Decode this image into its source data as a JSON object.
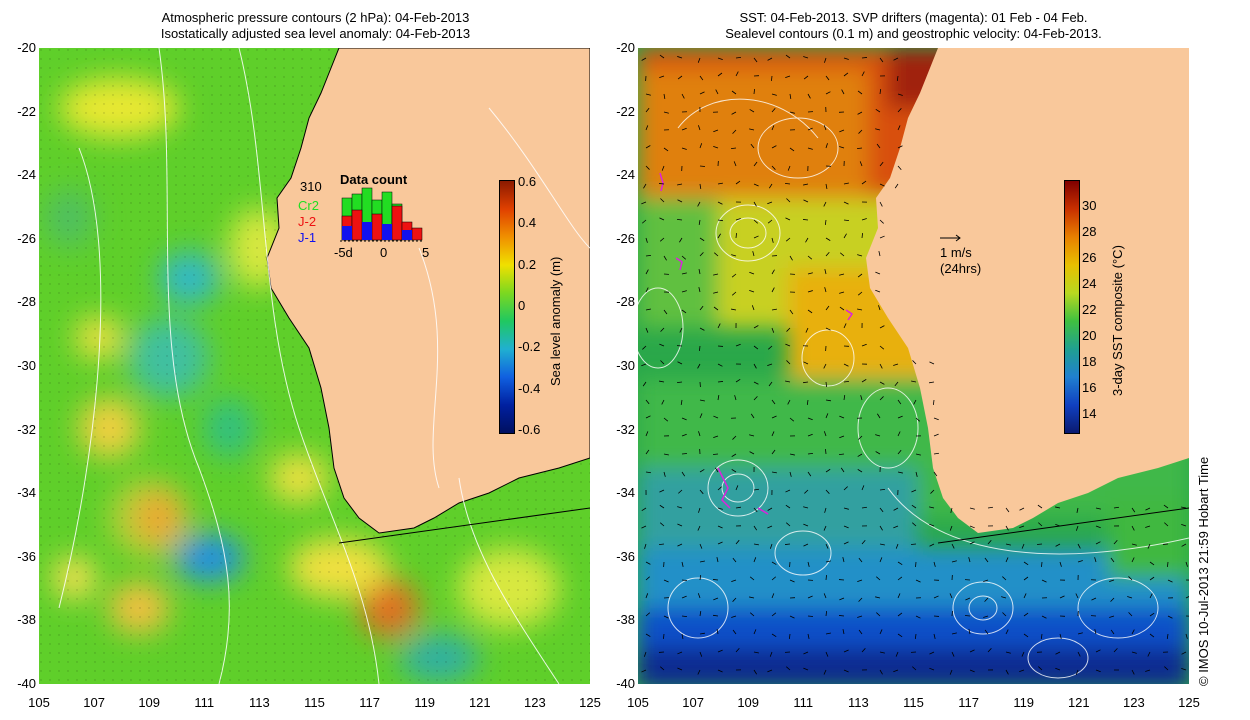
{
  "left_title": {
    "line1": "Atmospheric pressure contours (2 hPa): 04-Feb-2013",
    "line2": "Isostatically adjusted sea level anomaly: 04-Feb-2013"
  },
  "right_title": {
    "line1": "SST: 04-Feb-2013. SVP drifters (magenta): 01 Feb - 04 Feb.",
    "line2": "Sealevel contours (0.1 m) and geostrophic velocity: 04-Feb-2013."
  },
  "y_ticks": [
    "-20",
    "-22",
    "-24",
    "-26",
    "-28",
    "-30",
    "-32",
    "-34",
    "-36",
    "-38",
    "-40"
  ],
  "x_ticks": [
    "105",
    "107",
    "109",
    "111",
    "113",
    "115",
    "117",
    "119",
    "121",
    "123",
    "125"
  ],
  "left_colorbar": {
    "title": "Sea level anomaly (m)",
    "ticks": [
      "0.6",
      "0.4",
      "0.2",
      "0",
      "-0.2",
      "-0.4",
      "-0.6"
    ]
  },
  "right_colorbar": {
    "title": "3-day SST composite (°C)",
    "ticks": [
      "30",
      "28",
      "26",
      "24",
      "22",
      "20",
      "18",
      "16",
      "14"
    ]
  },
  "data_count": {
    "title": "Data count",
    "max": "310",
    "series": [
      {
        "name": "Cr2",
        "color": "#22dd22"
      },
      {
        "name": "J-2",
        "color": "#ee1111"
      },
      {
        "name": "J-1",
        "color": "#1111ee"
      }
    ],
    "x_labels": [
      "-5d",
      "0",
      "5"
    ]
  },
  "scale_arrow": {
    "line1": "1 m/s",
    "line2": "(24hrs)"
  },
  "credit": "© IMOS 10-Jul-2013 21:59 Hobart Time",
  "colors": {
    "land": "#f9c89b",
    "drifter": "#dd22dd"
  }
}
